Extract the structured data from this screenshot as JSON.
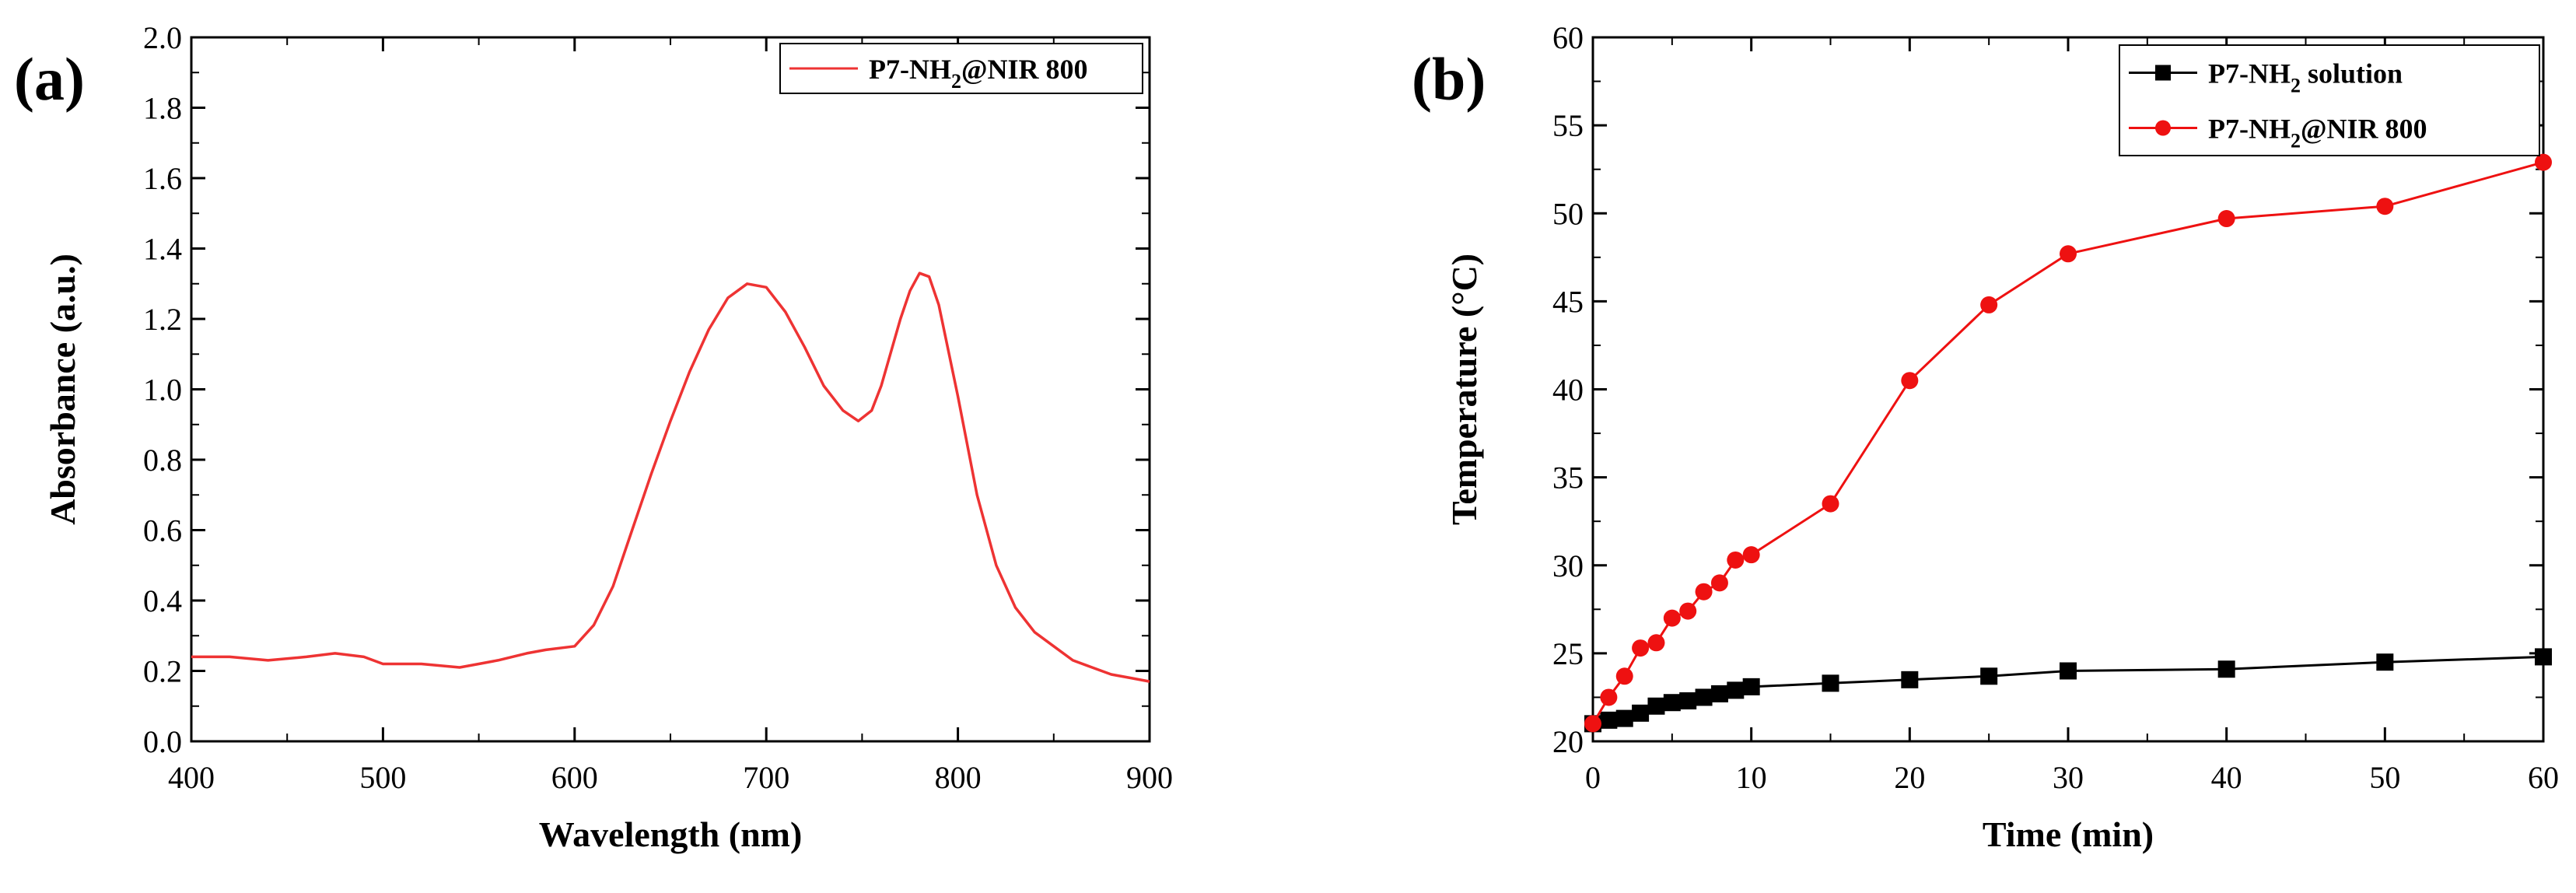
{
  "chart_data": [
    {
      "panel_label": "(a)",
      "type": "line",
      "xlabel": "Wavelength (nm)",
      "ylabel": "Absorbance (a.u.)",
      "xlim": [
        400,
        900
      ],
      "ylim": [
        0.0,
        2.0
      ],
      "xticks": [
        400,
        500,
        600,
        700,
        800,
        900
      ],
      "yticks": [
        0.0,
        0.2,
        0.4,
        0.6,
        0.8,
        1.0,
        1.2,
        1.4,
        1.6,
        1.8,
        2.0
      ],
      "xtick_labels": [
        "400",
        "500",
        "600",
        "700",
        "800",
        "900"
      ],
      "ytick_labels": [
        "0.0",
        "0.2",
        "0.4",
        "0.6",
        "0.8",
        "1.0",
        "1.2",
        "1.4",
        "1.6",
        "1.8",
        "2.0"
      ],
      "legend_position": "top-right",
      "series": [
        {
          "name": "P7-NH",
          "subscript": "2",
          "suffix": "@NIR 800",
          "color": "#ee3333",
          "marker": "none",
          "x": [
            400,
            410,
            420,
            440,
            460,
            475,
            490,
            500,
            520,
            540,
            550,
            560,
            575,
            585,
            600,
            610,
            620,
            630,
            640,
            650,
            660,
            670,
            680,
            690,
            700,
            710,
            720,
            730,
            740,
            748,
            755,
            760,
            770,
            775,
            780,
            785,
            790,
            800,
            810,
            820,
            830,
            840,
            850,
            860,
            870,
            880,
            890,
            900
          ],
          "y": [
            0.24,
            0.24,
            0.24,
            0.23,
            0.24,
            0.25,
            0.24,
            0.22,
            0.22,
            0.21,
            0.22,
            0.23,
            0.25,
            0.26,
            0.27,
            0.33,
            0.44,
            0.6,
            0.76,
            0.91,
            1.05,
            1.17,
            1.26,
            1.3,
            1.29,
            1.22,
            1.12,
            1.01,
            0.94,
            0.91,
            0.94,
            1.01,
            1.2,
            1.28,
            1.33,
            1.32,
            1.24,
            0.98,
            0.7,
            0.5,
            0.38,
            0.31,
            0.27,
            0.23,
            0.21,
            0.19,
            0.18,
            0.17
          ]
        }
      ]
    },
    {
      "panel_label": "(b)",
      "type": "line",
      "xlabel": "Time (min)",
      "ylabel": "Temperature (°C)",
      "xlim": [
        0,
        60
      ],
      "ylim": [
        20,
        60
      ],
      "xticks": [
        0,
        10,
        20,
        30,
        40,
        50,
        60
      ],
      "yticks": [
        20,
        25,
        30,
        35,
        40,
        45,
        50,
        55,
        60
      ],
      "xtick_labels": [
        "0",
        "10",
        "20",
        "30",
        "40",
        "50",
        "60"
      ],
      "ytick_labels": [
        "20",
        "25",
        "30",
        "35",
        "40",
        "45",
        "50",
        "55",
        "60"
      ],
      "legend_position": "top-right",
      "series": [
        {
          "name": "P7-NH",
          "subscript": "2",
          "suffix": " solution",
          "color": "#000000",
          "marker": "square",
          "x": [
            0,
            1,
            2,
            3,
            4,
            5,
            6,
            7,
            8,
            9,
            10,
            15,
            20,
            25,
            30,
            40,
            50,
            60
          ],
          "y": [
            21.0,
            21.2,
            21.3,
            21.6,
            22.0,
            22.2,
            22.3,
            22.5,
            22.7,
            22.9,
            23.1,
            23.3,
            23.5,
            23.7,
            24.0,
            24.1,
            24.5,
            24.8
          ]
        },
        {
          "name": "P7-NH",
          "subscript": "2",
          "suffix": "@NIR 800",
          "color": "#ee1111",
          "marker": "circle",
          "x": [
            0,
            1,
            2,
            3,
            4,
            5,
            6,
            7,
            8,
            9,
            10,
            15,
            20,
            25,
            30,
            40,
            50,
            60
          ],
          "y": [
            21.0,
            22.5,
            23.7,
            25.3,
            25.6,
            27.0,
            27.4,
            28.5,
            29.0,
            30.3,
            30.6,
            33.5,
            40.5,
            44.8,
            47.7,
            49.7,
            50.4,
            52.9
          ]
        }
      ]
    }
  ]
}
